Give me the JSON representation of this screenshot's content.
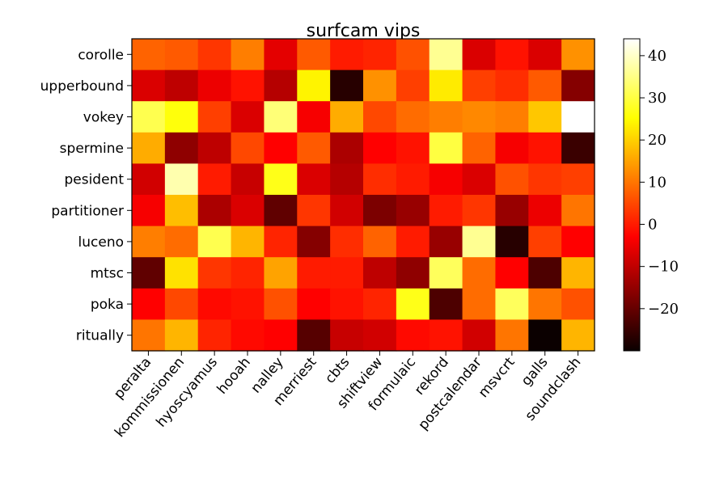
{
  "chart_data": {
    "type": "heatmap",
    "title": "surfcam vips",
    "xlabel": "",
    "ylabel": "",
    "x_categories": [
      "peralta",
      "kommissionen",
      "hyoscyamus",
      "hooah",
      "nalley",
      "merriest",
      "cbts",
      "shiftview",
      "formulaic",
      "rekord",
      "postcalendar",
      "msvcrt",
      "galls",
      "soundclash"
    ],
    "y_categories": [
      "corolle",
      "upperbound",
      "vokey",
      "spermine",
      "pesident",
      "partitioner",
      "luceno",
      "mtsc",
      "poka",
      "ritually"
    ],
    "values": [
      [
        8,
        7,
        3,
        11,
        -7,
        7,
        0,
        1,
        6,
        36,
        -8,
        -1,
        -8,
        13
      ],
      [
        -8,
        -11,
        -6,
        -1,
        -12,
        24,
        -27,
        13,
        4,
        23,
        4,
        2,
        7,
        -17
      ],
      [
        31,
        26,
        4,
        -8,
        34,
        -5,
        16,
        5,
        9,
        11,
        12,
        11,
        19,
        44
      ],
      [
        16,
        -16,
        -11,
        5,
        -3,
        7,
        -13,
        -4,
        -1,
        30,
        8,
        -5,
        -1,
        -25
      ],
      [
        -9,
        38,
        0,
        -10,
        27,
        -8,
        -12,
        2,
        0,
        -5,
        -8,
        6,
        3,
        4
      ],
      [
        -5,
        18,
        -13,
        -8,
        -21,
        3,
        -9,
        -18,
        -15,
        0,
        3,
        -15,
        -6,
        10
      ],
      [
        11,
        9,
        31,
        17,
        1,
        -17,
        2,
        8,
        0,
        -15,
        36,
        -27,
        4,
        -4
      ],
      [
        -21,
        22,
        3,
        1,
        15,
        0,
        0,
        -11,
        -16,
        32,
        9,
        -4,
        -23,
        17
      ],
      [
        -4,
        5,
        -2,
        -1,
        6,
        -3,
        -1,
        1,
        27,
        -23,
        9,
        32,
        10,
        6
      ],
      [
        10,
        17,
        1,
        -2,
        -4,
        -22,
        -10,
        -9,
        -2,
        -1,
        -9,
        10,
        -30,
        17
      ]
    ],
    "colormap": "hot",
    "colorbar": {
      "min": -30,
      "max": 44,
      "ticks": [
        40,
        30,
        20,
        10,
        0,
        -10,
        -20
      ],
      "tick_labels": [
        "40",
        "30",
        "20",
        "10",
        "0",
        "−10",
        "−20"
      ]
    },
    "grid": false,
    "legend": "none"
  }
}
